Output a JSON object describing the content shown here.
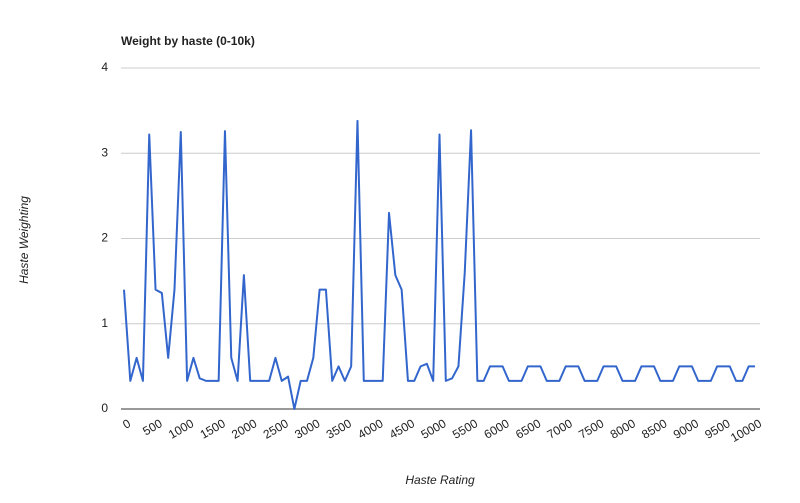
{
  "chart_data": {
    "type": "line",
    "title": "Weight by haste (0-10k)",
    "x_label": "Haste Rating",
    "y_label": "Haste Weighting",
    "x": [
      0,
      100,
      200,
      300,
      400,
      500,
      600,
      700,
      800,
      900,
      1000,
      1100,
      1200,
      1300,
      1400,
      1500,
      1600,
      1700,
      1800,
      1900,
      2000,
      2100,
      2200,
      2300,
      2400,
      2500,
      2600,
      2700,
      2800,
      2900,
      3000,
      3100,
      3200,
      3300,
      3400,
      3500,
      3600,
      3700,
      3800,
      3900,
      4000,
      4100,
      4200,
      4300,
      4400,
      4500,
      4600,
      4700,
      4800,
      4900,
      5000,
      5100,
      5200,
      5300,
      5400,
      5500,
      5600,
      5700,
      5800,
      5900,
      6000,
      6100,
      6200,
      6300,
      6400,
      6500,
      6600,
      6700,
      6800,
      6900,
      7000,
      7100,
      7200,
      7300,
      7400,
      7500,
      7600,
      7700,
      7800,
      7900,
      8000,
      8100,
      8200,
      8300,
      8400,
      8500,
      8600,
      8700,
      8800,
      8900,
      9000,
      9100,
      9200,
      9300,
      9400,
      9500,
      9600,
      9700,
      9800,
      9900,
      10000
    ],
    "series": [
      {
        "name": "Haste Weighting",
        "color": "#3366cc",
        "values": [
          1.4,
          0.33,
          0.6,
          0.33,
          3.22,
          1.4,
          1.36,
          0.6,
          1.4,
          3.25,
          0.33,
          0.6,
          0.36,
          0.33,
          0.33,
          0.33,
          3.26,
          0.6,
          0.33,
          1.57,
          0.33,
          0.33,
          0.33,
          0.33,
          0.6,
          0.33,
          0.38,
          0,
          0.33,
          0.33,
          0.6,
          1.4,
          1.4,
          0.33,
          0.5,
          0.33,
          0.5,
          3.38,
          0.33,
          0.33,
          0.33,
          0.33,
          2.3,
          1.57,
          1.4,
          0.33,
          0.33,
          0.5,
          0.53,
          0.33,
          3.22,
          0.33,
          0.36,
          0.5,
          1.6,
          3.27,
          0.33,
          0.33,
          0.5,
          0.5,
          0.5,
          0.33,
          0.33,
          0.33,
          0.5,
          0.5,
          0.5,
          0.33,
          0.33,
          0.33,
          0.5,
          0.5,
          0.5,
          0.33,
          0.33,
          0.33,
          0.5,
          0.5,
          0.5,
          0.33,
          0.33,
          0.33,
          0.5,
          0.5,
          0.5,
          0.33,
          0.33,
          0.33,
          0.5,
          0.5,
          0.5,
          0.33,
          0.33,
          0.33,
          0.5,
          0.5,
          0.5,
          0.33,
          0.33,
          0.5,
          0.5
        ]
      }
    ],
    "xlim": [
      0,
      10000
    ],
    "xticks": [
      0,
      500,
      1000,
      1500,
      2000,
      2500,
      3000,
      3500,
      4000,
      4500,
      5000,
      5500,
      6000,
      6500,
      7000,
      7500,
      8000,
      8500,
      9000,
      9500,
      10000
    ],
    "ylim": [
      0,
      4
    ],
    "yticks": [
      0,
      1,
      2,
      3,
      4
    ],
    "grid": true
  }
}
